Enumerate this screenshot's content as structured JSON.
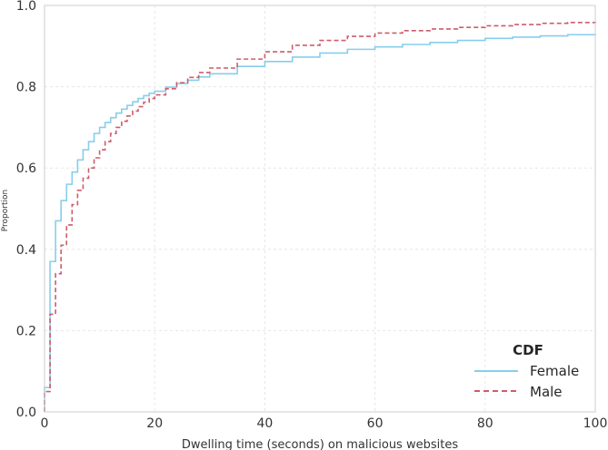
{
  "chart_data": {
    "type": "line",
    "subtype": "step-cdf",
    "title": "",
    "xlabel": "Dwelling time (seconds) on malicious websites",
    "ylabel": "Proportion",
    "xlim": [
      0,
      100
    ],
    "ylim": [
      0,
      1.0
    ],
    "xticks": [
      "0",
      "20",
      "40",
      "60",
      "80",
      "100"
    ],
    "yticks": [
      "0.0",
      "0.2",
      "0.4",
      "0.6",
      "0.8",
      "1.0"
    ],
    "grid": true,
    "legend": {
      "title": "CDF",
      "placement": "lower-right"
    },
    "series": [
      {
        "name": "Female",
        "color": "#87ceeb",
        "style": "solid",
        "x": [
          0,
          1,
          2,
          3,
          4,
          5,
          6,
          7,
          8,
          9,
          10,
          11,
          12,
          13,
          14,
          15,
          16,
          17,
          18,
          19,
          20,
          22,
          24,
          26,
          28,
          30,
          35,
          40,
          45,
          50,
          55,
          60,
          65,
          70,
          75,
          80,
          85,
          90,
          95,
          100
        ],
        "y": [
          0.06,
          0.37,
          0.47,
          0.52,
          0.56,
          0.59,
          0.62,
          0.645,
          0.665,
          0.685,
          0.7,
          0.712,
          0.724,
          0.735,
          0.745,
          0.754,
          0.763,
          0.771,
          0.778,
          0.784,
          0.789,
          0.799,
          0.808,
          0.816,
          0.824,
          0.832,
          0.85,
          0.862,
          0.873,
          0.883,
          0.892,
          0.898,
          0.904,
          0.909,
          0.914,
          0.919,
          0.922,
          0.925,
          0.928,
          0.93
        ]
      },
      {
        "name": "Male",
        "color": "#cd5c6c",
        "style": "dashed",
        "x": [
          0,
          1,
          2,
          3,
          4,
          5,
          6,
          7,
          8,
          9,
          10,
          11,
          12,
          13,
          14,
          15,
          16,
          17,
          18,
          19,
          20,
          22,
          24,
          26,
          28,
          30,
          35,
          40,
          45,
          50,
          55,
          60,
          65,
          70,
          75,
          80,
          85,
          90,
          95,
          100
        ],
        "y": [
          0.05,
          0.24,
          0.34,
          0.41,
          0.46,
          0.51,
          0.545,
          0.575,
          0.6,
          0.625,
          0.645,
          0.665,
          0.685,
          0.7,
          0.715,
          0.728,
          0.74,
          0.751,
          0.762,
          0.771,
          0.78,
          0.795,
          0.81,
          0.823,
          0.835,
          0.846,
          0.868,
          0.886,
          0.902,
          0.914,
          0.924,
          0.932,
          0.938,
          0.942,
          0.946,
          0.95,
          0.953,
          0.956,
          0.958,
          0.96
        ]
      }
    ]
  }
}
